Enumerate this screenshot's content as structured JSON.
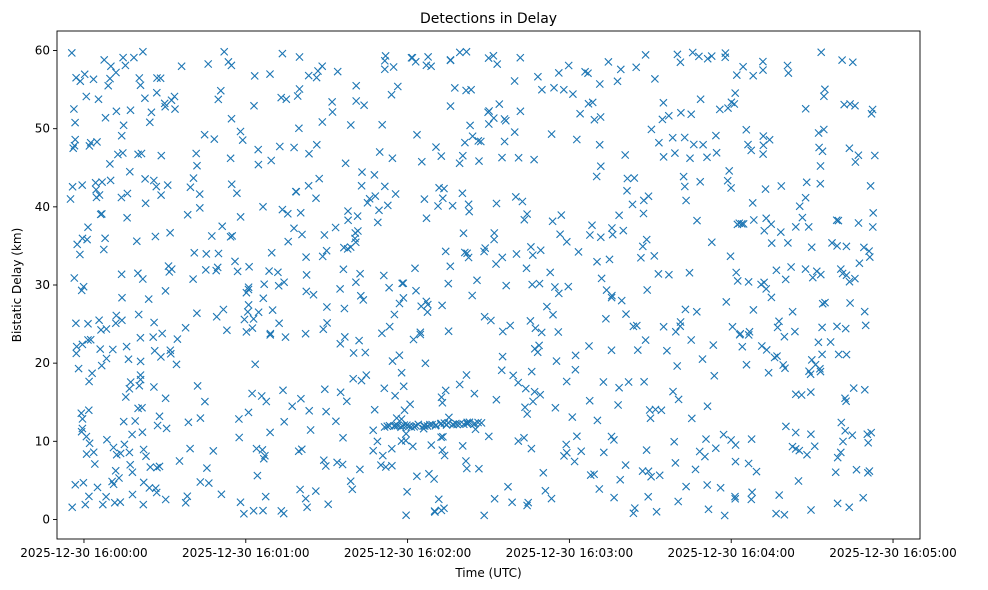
{
  "chart_data": {
    "type": "scatter",
    "title": "Detections in Delay",
    "xlabel": "Time (UTC)",
    "ylabel": "Bistatic Delay (km)",
    "xlim": [
      -10,
      310
    ],
    "ylim": [
      -2.5,
      62.5
    ],
    "x_ticks": [
      {
        "value": 0,
        "label": "2025-12-30 16:00:00"
      },
      {
        "value": 60,
        "label": "2025-12-30 16:01:00"
      },
      {
        "value": 120,
        "label": "2025-12-30 16:02:00"
      },
      {
        "value": 180,
        "label": "2025-12-30 16:03:00"
      },
      {
        "value": 240,
        "label": "2025-12-30 16:04:00"
      },
      {
        "value": 300,
        "label": "2025-12-30 16:05:00"
      }
    ],
    "y_ticks": [
      {
        "value": 0,
        "label": "0"
      },
      {
        "value": 10,
        "label": "10"
      },
      {
        "value": 20,
        "label": "20"
      },
      {
        "value": 30,
        "label": "30"
      },
      {
        "value": 40,
        "label": "40"
      },
      {
        "value": 50,
        "label": "50"
      },
      {
        "value": 60,
        "label": "60"
      }
    ],
    "marker": "x",
    "color": "#1f77b4",
    "time_range_seconds": [
      -5,
      294
    ],
    "delay_range_km": [
      0.5,
      60
    ],
    "point_count": 1000,
    "clusters": [
      {
        "name": "track-near-12km",
        "x_start": 112,
        "x_end": 147,
        "y_start": 11.8,
        "y_end": 12.4,
        "count": 40
      }
    ],
    "series": [
      {
        "name": "detections",
        "points": [
          [
            -5,
            41
          ],
          [
            -4.5,
            59.7
          ],
          [
            -4,
            47.5
          ],
          [
            -3.6,
            30.9
          ],
          [
            -3,
            25.1
          ],
          [
            -2.5,
            35.2
          ],
          [
            -2,
            19.3
          ],
          [
            -1.5,
            33.9
          ],
          [
            -1,
            13.6
          ],
          [
            -0.6,
            22.4
          ],
          [
            -0.2,
            4.7
          ],
          [
            0.5,
            1.9
          ],
          [
            0.9,
            10.6
          ],
          [
            1.5,
            37.4
          ],
          [
            2,
            47.8
          ],
          [
            2.5,
            48.2
          ],
          [
            3,
            18.7
          ],
          [
            3.6,
            8.6
          ],
          [
            4,
            7.1
          ],
          [
            4.5,
            42.2
          ],
          [
            5,
            4.1
          ],
          [
            5.6,
            25.5
          ],
          [
            6,
            21.8
          ],
          [
            6.6,
            39.1
          ],
          [
            7,
            1.9
          ],
          [
            7.5,
            58.8
          ],
          [
            8,
            51.4
          ],
          [
            8.5,
            10.2
          ],
          [
            9,
            55.5
          ],
          [
            9.6,
            45.5
          ],
          [
            10,
            58
          ],
          [
            11,
            4.5
          ],
          [
            12,
            26.1
          ],
          [
            12.6,
            46.7
          ],
          [
            13,
            5.3
          ],
          [
            14,
            49.1
          ],
          [
            14.5,
            59.1
          ],
          [
            15,
            9.6
          ],
          [
            16,
            38.6
          ],
          [
            16.5,
            20.5
          ],
          [
            17,
            44.5
          ],
          [
            18,
            3.2
          ],
          [
            18.5,
            59.1
          ],
          [
            19,
            12.6
          ],
          [
            19.6,
            35.6
          ],
          [
            20,
            31.5
          ],
          [
            21,
            17.9
          ],
          [
            21.5,
            14.3
          ],
          [
            22,
            1.9
          ],
          [
            22.6,
            53.9
          ],
          [
            23,
            8.1
          ],
          [
            24,
            28.2
          ],
          [
            24.6,
            6.7
          ],
          [
            25,
            52.1
          ],
          [
            26,
            25.2
          ],
          [
            26.5,
            36.2
          ],
          [
            27,
            54.6
          ],
          [
            28,
            13.2
          ],
          [
            28.6,
            41.5
          ],
          [
            29,
            23.8
          ]
        ]
      }
    ]
  }
}
